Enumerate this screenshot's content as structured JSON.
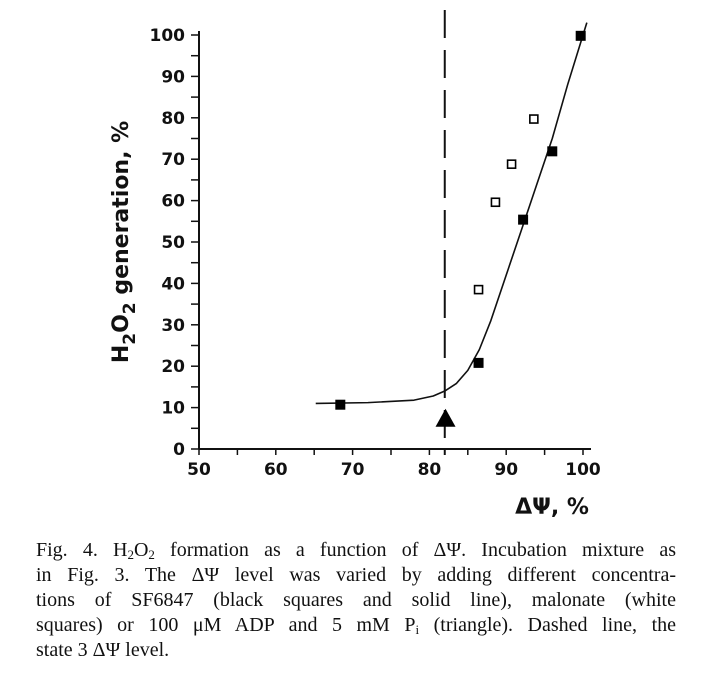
{
  "chart_data": {
    "type": "scatter",
    "xlabel": "ΔΨ, %",
    "ylabel_parts": [
      {
        "t": "H"
      },
      {
        "t": "2",
        "sub": true
      },
      {
        "t": "O"
      },
      {
        "t": "2",
        "sub": true
      },
      {
        "t": " generation, %"
      }
    ],
    "xlim": [
      50,
      100
    ],
    "ylim": [
      0,
      100
    ],
    "x_ticks": [
      50,
      60,
      70,
      80,
      90,
      100
    ],
    "y_ticks": [
      0,
      10,
      20,
      30,
      40,
      50,
      60,
      70,
      80,
      90,
      100
    ],
    "grid": false,
    "series": [
      {
        "marker": "filled-square",
        "color": "#000000",
        "points": [
          [
            68.4,
            10.7
          ],
          [
            86.4,
            20.8
          ],
          [
            92.2,
            55.4
          ],
          [
            96.0,
            71.9
          ],
          [
            99.7,
            99.8
          ]
        ]
      },
      {
        "marker": "open-square",
        "color": "#000000",
        "points": [
          [
            86.4,
            38.5
          ],
          [
            88.6,
            59.6
          ],
          [
            90.7,
            68.8
          ],
          [
            93.6,
            79.7
          ]
        ]
      },
      {
        "marker": "filled-triangle",
        "color": "#000000",
        "points": [
          [
            82.1,
            7.3
          ]
        ]
      }
    ],
    "fit_line": {
      "style": "solid",
      "points": [
        [
          65.2,
          11
        ],
        [
          72,
          11.2
        ],
        [
          78,
          11.8
        ],
        [
          80.5,
          12.8
        ],
        [
          82,
          14
        ],
        [
          83.5,
          15.8
        ],
        [
          85,
          19
        ],
        [
          86.5,
          24
        ],
        [
          88,
          31
        ],
        [
          90,
          42
        ],
        [
          92,
          53
        ],
        [
          94,
          64
        ],
        [
          96,
          75
        ],
        [
          98,
          88
        ],
        [
          100.5,
          103
        ]
      ]
    },
    "reference_line": {
      "style": "dashed",
      "x": 82
    }
  },
  "caption": [
    [
      {
        "t": "Fig. 4. H"
      },
      {
        "t": "2",
        "sub": true
      },
      {
        "t": "O"
      },
      {
        "t": "2",
        "sub": true
      },
      {
        "t": " formation as a function of ΔΨ. Incubation mixture as"
      }
    ],
    [
      {
        "t": "in Fig. 3. The ΔΨ level was varied by adding different concentra-"
      }
    ],
    [
      {
        "t": "tions of SF6847 (black squares and solid line), malonate (white"
      }
    ],
    [
      {
        "t": "squares) or 100 μM ADP and 5 mM P"
      },
      {
        "t": "i",
        "sub": true
      },
      {
        "t": " (triangle). Dashed line, the"
      }
    ],
    [
      {
        "t": "state 3 ΔΨ level."
      }
    ]
  ]
}
